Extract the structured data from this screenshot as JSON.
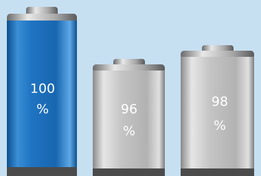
{
  "batteries": [
    {
      "lines": [
        "100",
        "%"
      ]
    },
    {
      "lines": [
        "96",
        "%"
      ]
    },
    {
      "lines": [
        "98",
        "%"
      ]
    }
  ]
}
